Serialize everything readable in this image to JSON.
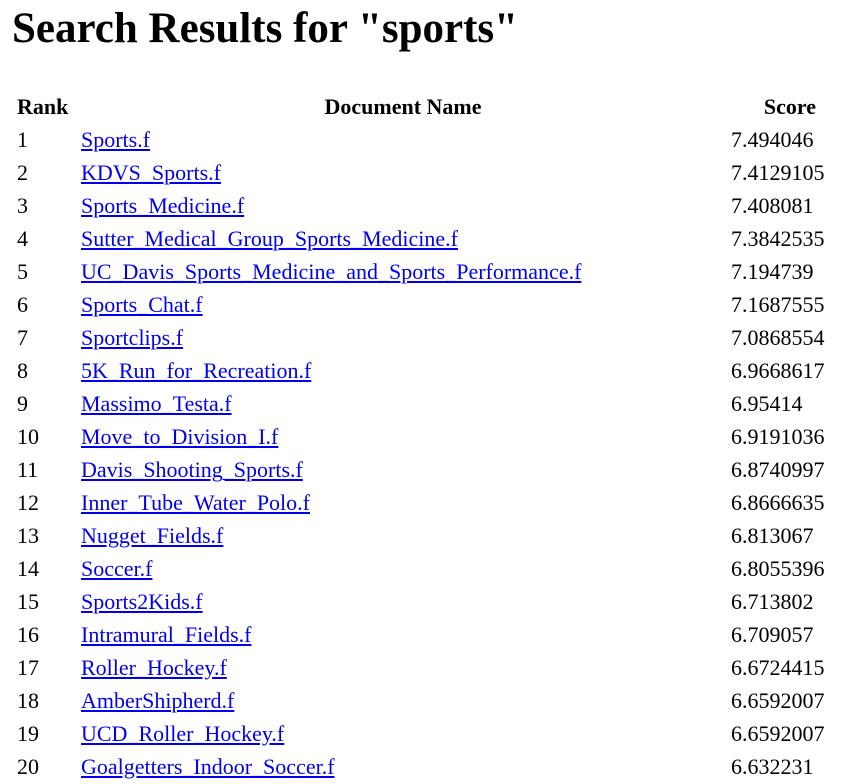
{
  "page": {
    "heading": "Search Results for \"sports\""
  },
  "table": {
    "headers": {
      "rank": "Rank",
      "document": "Document Name",
      "score": "Score"
    },
    "rows": [
      {
        "rank": "1",
        "document": "Sports.f",
        "score": "7.494046"
      },
      {
        "rank": "2",
        "document": "KDVS_Sports.f",
        "score": "7.4129105"
      },
      {
        "rank": "3",
        "document": "Sports_Medicine.f",
        "score": "7.408081"
      },
      {
        "rank": "4",
        "document": "Sutter_Medical_Group_Sports_Medicine.f",
        "score": "7.3842535"
      },
      {
        "rank": "5",
        "document": "UC_Davis_Sports_Medicine_and_Sports_Performance.f",
        "score": "7.194739"
      },
      {
        "rank": "6",
        "document": "Sports_Chat.f",
        "score": "7.1687555"
      },
      {
        "rank": "7",
        "document": "Sportclips.f",
        "score": "7.0868554"
      },
      {
        "rank": "8",
        "document": "5K_Run_for_Recreation.f",
        "score": "6.9668617"
      },
      {
        "rank": "9",
        "document": "Massimo_Testa.f",
        "score": "6.95414"
      },
      {
        "rank": "10",
        "document": "Move_to_Division_I.f",
        "score": "6.9191036"
      },
      {
        "rank": "11",
        "document": "Davis_Shooting_Sports.f",
        "score": "6.8740997"
      },
      {
        "rank": "12",
        "document": "Inner_Tube_Water_Polo.f",
        "score": "6.8666635"
      },
      {
        "rank": "13",
        "document": "Nugget_Fields.f",
        "score": "6.813067"
      },
      {
        "rank": "14",
        "document": "Soccer.f",
        "score": "6.8055396"
      },
      {
        "rank": "15",
        "document": "Sports2Kids.f",
        "score": "6.713802"
      },
      {
        "rank": "16",
        "document": "Intramural_Fields.f",
        "score": "6.709057"
      },
      {
        "rank": "17",
        "document": "Roller_Hockey.f",
        "score": "6.6724415"
      },
      {
        "rank": "18",
        "document": "AmberShipherd.f",
        "score": "6.6592007"
      },
      {
        "rank": "19",
        "document": "UCD_Roller_Hockey.f",
        "score": "6.6592007"
      },
      {
        "rank": "20",
        "document": "Goalgetters_Indoor_Soccer.f",
        "score": "6.632231"
      }
    ]
  },
  "colors": {
    "link": "#0000ee",
    "text": "#000000",
    "background": "#ffffff"
  }
}
